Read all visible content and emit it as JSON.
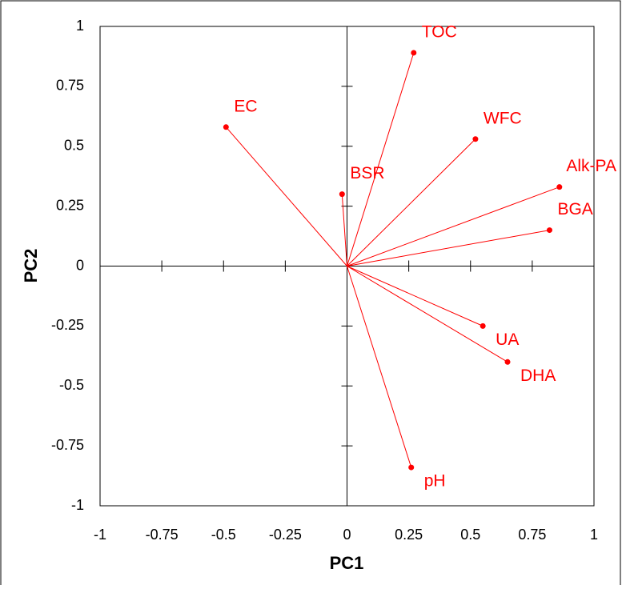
{
  "chart_data": {
    "type": "loading",
    "x_label": "PC1",
    "y_label": "PC2",
    "color": "#ff0000",
    "xlim": [
      -1,
      1
    ],
    "ylim": [
      -1,
      1
    ],
    "xticks": [
      -1,
      -0.75,
      -0.5,
      -0.25,
      0,
      0.25,
      0.5,
      0.75,
      1
    ],
    "yticks": [
      -1,
      -0.75,
      -0.5,
      -0.25,
      0,
      0.25,
      0.5,
      0.75,
      1
    ],
    "points": [
      {
        "label": "TOC",
        "x": 0.27,
        "y": 0.89
      },
      {
        "label": "EC",
        "x": -0.49,
        "y": 0.58
      },
      {
        "label": "WFC",
        "x": 0.52,
        "y": 0.53
      },
      {
        "label": "BSR",
        "x": -0.02,
        "y": 0.3
      },
      {
        "label": "Alk-PA",
        "x": 0.86,
        "y": 0.33
      },
      {
        "label": "BGA",
        "x": 0.82,
        "y": 0.15
      },
      {
        "label": "UA",
        "x": 0.55,
        "y": -0.25
      },
      {
        "label": "DHA",
        "x": 0.65,
        "y": -0.4
      },
      {
        "label": "pH",
        "x": 0.26,
        "y": -0.84
      }
    ]
  }
}
